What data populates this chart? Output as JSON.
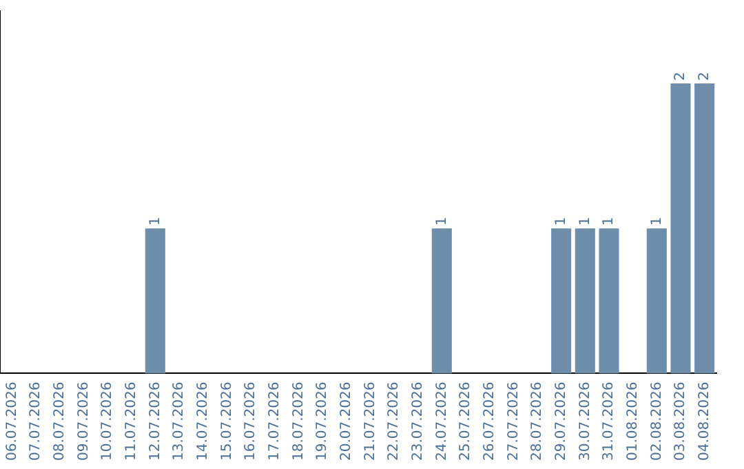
{
  "chart_data": {
    "type": "bar",
    "categories": [
      "06.07.2026",
      "07.07.2026",
      "08.07.2026",
      "09.07.2026",
      "10.07.2026",
      "11.07.2026",
      "12.07.2026",
      "13.07.2026",
      "14.07.2026",
      "15.07.2026",
      "16.07.2026",
      "17.07.2026",
      "18.07.2026",
      "19.07.2026",
      "20.07.2026",
      "21.07.2026",
      "22.07.2026",
      "23.07.2026",
      "24.07.2026",
      "25.07.2026",
      "26.07.2026",
      "27.07.2026",
      "28.07.2026",
      "29.07.2026",
      "30.07.2026",
      "31.07.2026",
      "01.08.2026",
      "02.08.2026",
      "03.08.2026",
      "04.08.2026"
    ],
    "values": [
      0,
      0,
      0,
      0,
      0,
      0,
      1,
      0,
      0,
      0,
      0,
      0,
      0,
      0,
      0,
      0,
      0,
      0,
      1,
      0,
      0,
      0,
      0,
      1,
      1,
      1,
      0,
      1,
      2,
      2
    ],
    "value_labels": [
      null,
      null,
      null,
      null,
      null,
      null,
      "1",
      null,
      null,
      null,
      null,
      null,
      null,
      null,
      null,
      null,
      null,
      null,
      "1",
      null,
      null,
      null,
      null,
      "1",
      "1",
      "1",
      null,
      "1",
      "2",
      "2"
    ],
    "color": "#6e8dab",
    "grid": false,
    "legend": false,
    "tick_labels": "x"
  }
}
